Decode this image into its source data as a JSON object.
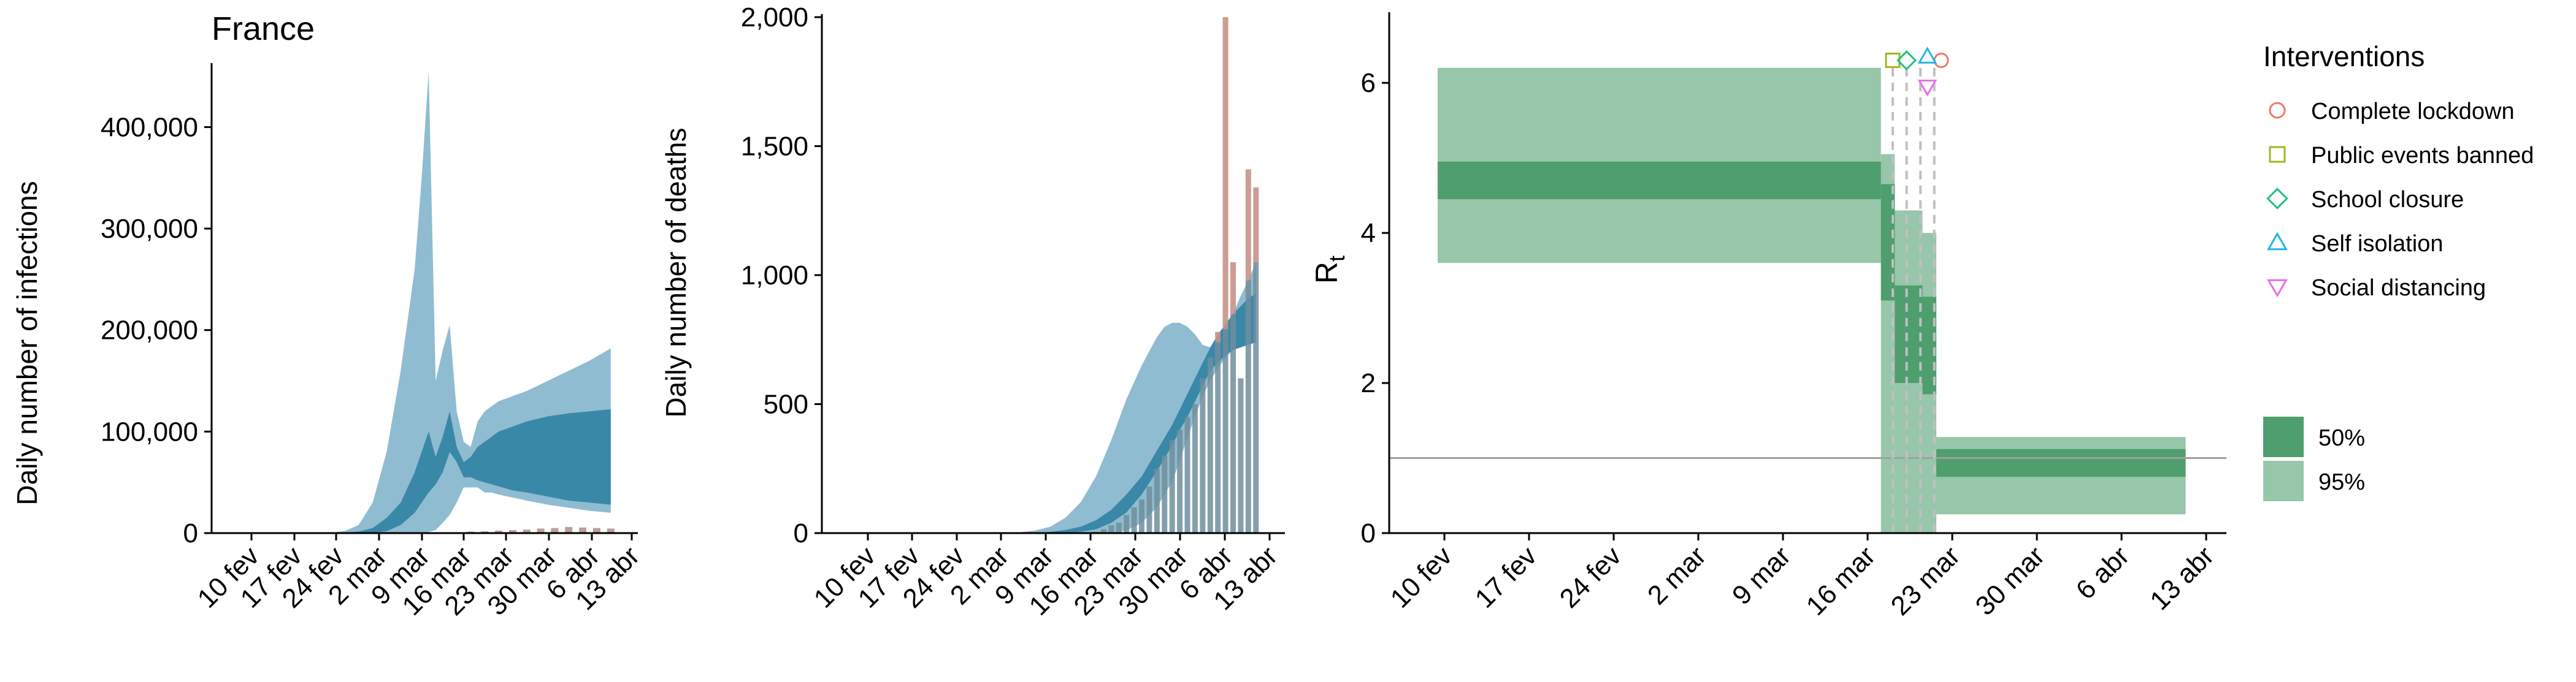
{
  "chart_data": [
    {
      "type": "area",
      "title": "France",
      "ylabel": "Daily number of infections",
      "xlabel": "",
      "ylim": [
        0,
        460000
      ],
      "yticks": [
        0,
        100000,
        200000,
        300000,
        400000
      ],
      "ytick_labels": [
        "0",
        "100,000",
        "200,000",
        "300,000",
        "400,000"
      ],
      "xticks": [
        "10 fev",
        "17 fev",
        "24 fev",
        "2 mar",
        "9 mar",
        "16 mar",
        "23 mar",
        "30 mar",
        "6 abr",
        "13 abr"
      ],
      "colors": {
        "band95": "#8fbcd0",
        "band50": "#3a88a8",
        "bars": "#b8a09a"
      },
      "days": [
        10,
        13,
        16,
        19,
        22,
        24,
        26,
        28,
        30,
        32,
        34,
        35,
        36,
        37,
        38,
        39,
        40,
        41,
        42,
        43,
        44,
        45,
        46,
        48,
        50,
        53,
        56,
        59,
        62
      ],
      "series": [
        {
          "name": "95%",
          "lower": [
            0,
            0,
            0,
            0,
            0,
            0,
            0,
            0,
            0,
            0,
            0,
            0,
            1000,
            3000,
            10000,
            18000,
            30000,
            45000,
            45000,
            45000,
            40000,
            40000,
            38000,
            35000,
            32000,
            28000,
            25000,
            22000,
            20000
          ],
          "upper": [
            0,
            0,
            0,
            100,
            500,
            2000,
            8000,
            30000,
            80000,
            160000,
            260000,
            350000,
            455000,
            150000,
            180000,
            205000,
            120000,
            90000,
            85000,
            110000,
            120000,
            125000,
            130000,
            135000,
            140000,
            150000,
            160000,
            170000,
            182000
          ]
        },
        {
          "name": "50%",
          "lower": [
            0,
            0,
            0,
            0,
            0,
            0,
            0,
            0,
            2000,
            8000,
            20000,
            30000,
            40000,
            48000,
            60000,
            80000,
            70000,
            55000,
            55000,
            52000,
            50000,
            48000,
            46000,
            42000,
            40000,
            36000,
            32000,
            30000,
            28000
          ],
          "upper": [
            0,
            0,
            0,
            0,
            100,
            400,
            1500,
            5000,
            15000,
            30000,
            60000,
            80000,
            100000,
            75000,
            95000,
            120000,
            85000,
            70000,
            75000,
            85000,
            90000,
            95000,
            100000,
            105000,
            110000,
            115000,
            118000,
            120000,
            122000
          ]
        }
      ],
      "reported_cases": {
        "days": [
          42,
          44,
          46,
          48,
          50,
          52,
          54,
          56,
          58,
          60,
          62
        ],
        "values": [
          1500,
          1800,
          2500,
          3000,
          3500,
          4500,
          5000,
          6000,
          5500,
          5000,
          4500
        ]
      }
    },
    {
      "type": "bar",
      "title": "",
      "ylabel": "Daily number of deaths",
      "xlabel": "",
      "ylim": [
        0,
        2000
      ],
      "yticks": [
        0,
        500,
        1000,
        1500,
        2000
      ],
      "ytick_labels": [
        "0",
        "500",
        "1,000",
        "1,500",
        "2,000"
      ],
      "xticks": [
        "10 fev",
        "17 fev",
        "24 fev",
        "2 mar",
        "9 mar",
        "16 mar",
        "23 mar",
        "30 mar",
        "6 abr",
        "13 abr"
      ],
      "colors": {
        "band95": "#8fbcd0",
        "band50": "#3a88a8",
        "bars": "#c8918a",
        "bars_overlap": "#6e8e9c"
      },
      "deaths": {
        "days": [
          41,
          42,
          43,
          44,
          45,
          46,
          47,
          48,
          49,
          50,
          51,
          52,
          53,
          54,
          55,
          56,
          57,
          58,
          59,
          60,
          61,
          62
        ],
        "values": [
          5,
          15,
          30,
          40,
          70,
          100,
          130,
          180,
          250,
          300,
          360,
          400,
          450,
          500,
          600,
          680,
          780,
          2000,
          1050,
          600,
          1410,
          1340
        ]
      },
      "band_days": [
        28,
        31,
        33,
        35,
        37,
        39,
        41,
        43,
        45,
        47,
        49,
        50,
        51,
        52,
        53,
        54,
        55,
        56,
        57,
        58,
        59,
        60,
        61,
        62
      ],
      "series": [
        {
          "name": "95%",
          "lower": [
            0,
            0,
            0,
            0,
            0,
            0,
            0,
            0,
            10,
            40,
            100,
            150,
            200,
            280,
            370,
            450,
            530,
            590,
            640,
            680,
            710,
            740,
            770,
            800
          ],
          "upper": [
            0,
            3,
            10,
            25,
            60,
            120,
            220,
            360,
            520,
            650,
            760,
            800,
            815,
            815,
            800,
            770,
            730,
            720,
            740,
            790,
            850,
            920,
            980,
            1050
          ]
        },
        {
          "name": "50%",
          "lower": [
            0,
            0,
            0,
            0,
            2,
            5,
            15,
            40,
            80,
            150,
            240,
            290,
            340,
            400,
            450,
            510,
            570,
            630,
            660,
            690,
            710,
            720,
            730,
            740
          ],
          "upper": [
            0,
            0,
            2,
            5,
            12,
            25,
            50,
            90,
            150,
            220,
            320,
            370,
            420,
            480,
            540,
            600,
            660,
            720,
            770,
            810,
            850,
            880,
            910,
            930
          ]
        }
      ]
    },
    {
      "type": "area",
      "title": "",
      "ylabel": "R",
      "ylabel_subscript": "t",
      "xlabel": "",
      "ylim": [
        0,
        6.9
      ],
      "yticks": [
        0,
        2,
        4,
        6
      ],
      "ytick_labels": [
        "0",
        "2",
        "4",
        "6"
      ],
      "xticks": [
        "10 fev",
        "17 fev",
        "24 fev",
        "2 mar",
        "9 mar",
        "16 mar",
        "23 mar",
        "30 mar",
        "6 abr",
        "13 abr"
      ],
      "reference_line": 1,
      "colors": {
        "band95": "#98c6aa",
        "band50": "#4e9e6e",
        "refline": "#a0a0a0",
        "vline": "#c0c0c0"
      },
      "segments": [
        {
          "start": 8.5,
          "end": 40.5,
          "lo95": 3.6,
          "hi95": 6.2,
          "lo50": 4.45,
          "hi50": 4.95
        },
        {
          "start": 40.5,
          "end": 41.5,
          "lo95": 0,
          "hi95": 5.05,
          "lo50": 3.1,
          "hi50": 4.65
        },
        {
          "start": 41.5,
          "end": 43.5,
          "lo95": 0,
          "hi95": 4.3,
          "lo50": 2.0,
          "hi50": 3.3
        },
        {
          "start": 43.5,
          "end": 44.5,
          "lo95": 0,
          "hi95": 4.0,
          "lo50": 1.85,
          "hi50": 3.15
        },
        {
          "start": 44.5,
          "end": 62.5,
          "lo95": 0.25,
          "hi95": 1.28,
          "lo50": 0.75,
          "hi50": 1.12
        }
      ],
      "intervention_lines": [
        41,
        42,
        43,
        44
      ],
      "interventions": [
        {
          "label": "Complete lockdown",
          "shape": "circle",
          "color": "#f0786a",
          "day": 44.5,
          "y": 6.3
        },
        {
          "label": "Public events banned",
          "shape": "square",
          "color": "#a3b51e",
          "day": 41,
          "y": 6.3
        },
        {
          "label": "School closure",
          "shape": "diamond",
          "color": "#1fc17a",
          "day": 42,
          "y": 6.3
        },
        {
          "label": "Self isolation",
          "shape": "triangle-up",
          "color": "#1fb7e0",
          "day": 43.5,
          "y": 6.35
        },
        {
          "label": "Social distancing",
          "shape": "triangle-down",
          "color": "#e86fe8",
          "day": 43.5,
          "y": 5.95
        }
      ],
      "legend_title": "Interventions",
      "band_legend": [
        {
          "label": "50%",
          "color": "#4e9e6e"
        },
        {
          "label": "95%",
          "color": "#98c6aa"
        }
      ],
      "legend_position": "right"
    }
  ]
}
